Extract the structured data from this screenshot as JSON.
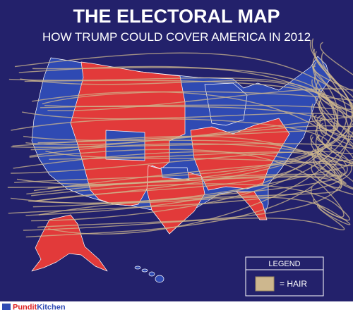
{
  "header": {
    "title": "THE ELECTORAL MAP",
    "subtitle": "HOW TRUMP COULD COVER AMERICA IN 2012"
  },
  "legend": {
    "title": "LEGEND",
    "items": [
      {
        "label": "= HAIR"
      }
    ]
  },
  "footer": {
    "brand_part1": "Pundit",
    "brand_part2": "Kitchen"
  }
}
